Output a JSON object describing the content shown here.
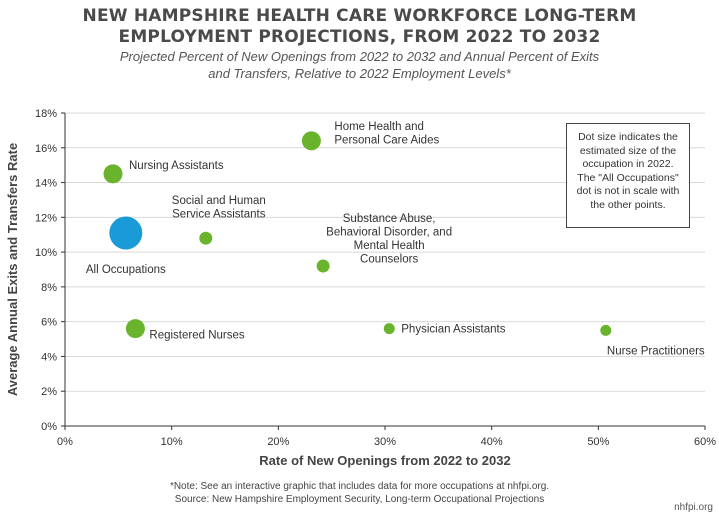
{
  "header": {
    "title_line1": "NEW HAMPSHIRE HEALTH CARE WORKFORCE LONG-TERM",
    "title_line2": "EMPLOYMENT PROJECTIONS, FROM 2022 TO 2032",
    "subtitle_line1": "Projected Percent of New Openings from 2022 to 2032 and Annual Percent of Exits",
    "subtitle_line2": "and Transfers, Relative to 2022 Employment Levels*"
  },
  "note_box": "Dot size indicates the estimated size of the occupation in 2022. The \"All Occupations\" dot is not in scale with the other points.",
  "footer": {
    "note": "*Note: See an interactive graphic that includes data for more occupations at nhfpi.org.",
    "source": "Source: New Hampshire Employment Security, Long-term Occupational Projections",
    "brand": "nhfpi.org"
  },
  "colors": {
    "occupation": "#6ab42d",
    "all_occupations": "#1a9ad6",
    "grid": "#d9d9d9",
    "axis": "#333333"
  },
  "chart_data": {
    "type": "scatter",
    "xlabel": "Rate of New Openings from 2022 to 2032",
    "ylabel": "Average Annual Exits and Transfers Rate",
    "xlim": [
      0,
      60
    ],
    "ylim": [
      0,
      18
    ],
    "x_ticks": [
      0,
      10,
      20,
      30,
      40,
      50,
      60
    ],
    "y_ticks": [
      0,
      2,
      4,
      6,
      8,
      10,
      12,
      14,
      16,
      18
    ],
    "x_tick_labels": [
      "0%",
      "10%",
      "20%",
      "30%",
      "40%",
      "50%",
      "60%"
    ],
    "y_tick_labels": [
      "0%",
      "2%",
      "4%",
      "6%",
      "8%",
      "10%",
      "12%",
      "14%",
      "16%",
      "18%"
    ],
    "grid": "horizontal",
    "points": [
      {
        "label": [
          "Home Health and",
          "Personal Care Aides"
        ],
        "x": 23.1,
        "y": 16.4,
        "size": "large",
        "group": "occupation"
      },
      {
        "label": [
          "Nursing Assistants"
        ],
        "x": 4.5,
        "y": 14.5,
        "size": "large",
        "group": "occupation"
      },
      {
        "label": [
          "Social and Human",
          "Service Assistants"
        ],
        "x": 13.2,
        "y": 10.8,
        "size": "medium",
        "group": "occupation"
      },
      {
        "label": [
          "All Occupations"
        ],
        "x": 5.7,
        "y": 11.1,
        "size": "largest",
        "group": "all"
      },
      {
        "label": [
          "Substance Abuse,",
          "Behavioral Disorder, and",
          "Mental Health",
          "Counselors"
        ],
        "x": 24.2,
        "y": 9.2,
        "size": "medium",
        "group": "occupation"
      },
      {
        "label": [
          "Registered Nurses"
        ],
        "x": 6.6,
        "y": 5.6,
        "size": "large",
        "group": "occupation"
      },
      {
        "label": [
          "Physician Assistants"
        ],
        "x": 30.4,
        "y": 5.6,
        "size": "small",
        "group": "occupation"
      },
      {
        "label": [
          "Nurse Practitioners"
        ],
        "x": 50.7,
        "y": 5.5,
        "size": "small",
        "group": "occupation"
      }
    ]
  }
}
